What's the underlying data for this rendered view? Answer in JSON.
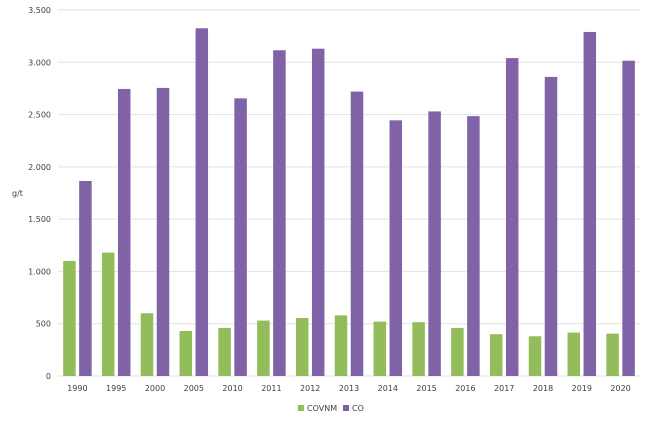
{
  "chart_data": {
    "type": "bar",
    "title": "",
    "xlabel": "",
    "ylabel": "g/t",
    "categories": [
      "1990",
      "1995",
      "2000",
      "2005",
      "2010",
      "2011",
      "2012",
      "2013",
      "2014",
      "2015",
      "2016",
      "2017",
      "2018",
      "2019",
      "2020"
    ],
    "series": [
      {
        "name": "COVNM",
        "color": "#92bd5a",
        "values": [
          1100,
          1180,
          600,
          430,
          460,
          530,
          555,
          580,
          520,
          515,
          460,
          400,
          380,
          415,
          405
        ]
      },
      {
        "name": "CO",
        "color": "#8062a6",
        "values": [
          1865,
          2745,
          2755,
          3325,
          2655,
          3115,
          3130,
          2720,
          2445,
          2530,
          2485,
          3040,
          2860,
          3290,
          3015
        ]
      }
    ],
    "ylim": [
      0,
      3500
    ],
    "yticks": [
      0,
      500,
      1000,
      1500,
      2000,
      2500,
      3000,
      3500
    ],
    "ytick_labels": [
      "0",
      "500",
      "1.000",
      "1.500",
      "2.000",
      "2.500",
      "3.000",
      "3.500"
    ],
    "grid": true,
    "legend_position": "bottom-center"
  }
}
